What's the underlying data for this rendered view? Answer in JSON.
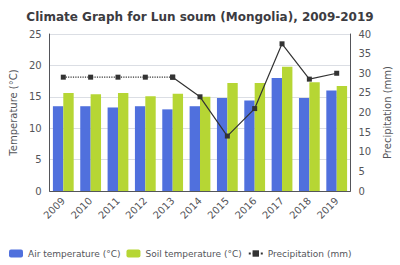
{
  "chart_data": {
    "type": "bar",
    "title": "Climate Graph for Lun soum (Mongolia), 2009-2019",
    "categories": [
      "2009",
      "2010",
      "2011",
      "2012",
      "2013",
      "2014",
      "2015",
      "2016",
      "2017",
      "2018",
      "2019"
    ],
    "series": [
      {
        "name": "Air temperature (°C)",
        "type": "bar",
        "values": [
          13.5,
          13.5,
          13.3,
          13.5,
          13.0,
          13.5,
          14.8,
          14.4,
          18.0,
          14.8,
          16.0
        ]
      },
      {
        "name": "Soil temperature (°C)",
        "type": "bar",
        "values": [
          15.6,
          15.4,
          15.6,
          15.1,
          15.5,
          15.0,
          17.2,
          17.2,
          19.8,
          17.3,
          16.7
        ]
      },
      {
        "name": "Precipitation (mm)",
        "type": "line",
        "axis": "y2",
        "color": "#333333",
        "marker": "square",
        "line_style": "dotted",
        "values": [
          29.0,
          29.0,
          29.0,
          29.0,
          29.0,
          null,
          null,
          null,
          null,
          null,
          null
        ]
      },
      {
        "name": "Precipitation (mm)",
        "type": "line",
        "axis": "y2",
        "color": "#333333",
        "marker": "square",
        "line_style": "solid",
        "values": [
          null,
          null,
          null,
          null,
          29.0,
          24.0,
          14.0,
          21.0,
          37.5,
          28.5,
          30.0
        ]
      }
    ],
    "ylabel": "Temperature (°C)",
    "y2label": "Precipitation (mm)",
    "ylim": [
      0,
      25
    ],
    "yticks": [
      0,
      5,
      10,
      15,
      20,
      25
    ],
    "y2lim": [
      0,
      40
    ],
    "y2ticks": [
      0,
      5,
      10,
      15,
      20,
      25,
      30,
      35,
      40
    ],
    "grid": true,
    "legend": "bottom"
  }
}
